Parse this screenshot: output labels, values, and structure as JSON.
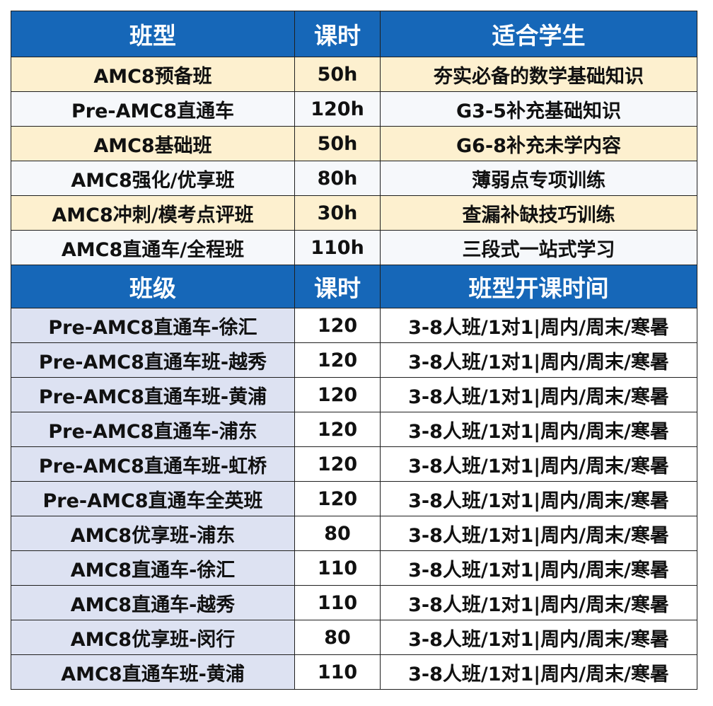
{
  "section1": {
    "headers": [
      "班型",
      "课时",
      "适合学生"
    ],
    "rows": [
      {
        "name": "AMC8预备班",
        "hours": "50h",
        "target": "夯实必备的数学基础知识"
      },
      {
        "name": "Pre-AMC8直通车",
        "hours": "120h",
        "target": "G3-5补充基础知识"
      },
      {
        "name": "AMC8基础班",
        "hours": "50h",
        "target": "G6-8补充未学内容"
      },
      {
        "name": "AMC8强化/优享班",
        "hours": "80h",
        "target": "薄弱点专项训练"
      },
      {
        "name": "AMC8冲刺/模考点评班",
        "hours": "30h",
        "target": "查漏补缺技巧训练"
      },
      {
        "name": "AMC8直通车/全程班",
        "hours": "110h",
        "target": "三段式一站式学习"
      }
    ]
  },
  "section2": {
    "headers": [
      "班级",
      "课时",
      "班型开课时间"
    ],
    "rows": [
      {
        "name": "Pre-AMC8直通车-徐汇",
        "hours": "120",
        "schedule": "3-8人班/1对1|周内/周末/寒暑"
      },
      {
        "name": "Pre-AMC8直通车班-越秀",
        "hours": "120",
        "schedule": "3-8人班/1对1|周内/周末/寒暑"
      },
      {
        "name": "Pre-AMC8直通车班-黄浦",
        "hours": "120",
        "schedule": "3-8人班/1对1|周内/周末/寒暑"
      },
      {
        "name": "Pre-AMC8直通车-浦东",
        "hours": "120",
        "schedule": "3-8人班/1对1|周内/周末/寒暑"
      },
      {
        "name": "Pre-AMC8直通车班-虹桥",
        "hours": "120",
        "schedule": "3-8人班/1对1|周内/周末/寒暑"
      },
      {
        "name": "Pre-AMC8直通车全英班",
        "hours": "120",
        "schedule": "3-8人班/1对1|周内/周末/寒暑"
      },
      {
        "name": "AMC8优享班-浦东",
        "hours": "80",
        "schedule": "3-8人班/1对1|周内/周末/寒暑"
      },
      {
        "name": "AMC8直通车-徐汇",
        "hours": "110",
        "schedule": "3-8人班/1对1|周内/周末/寒暑"
      },
      {
        "name": "AMC8直通车-越秀",
        "hours": "110",
        "schedule": "3-8人班/1对1|周内/周末/寒暑"
      },
      {
        "name": "AMC8优享班-闵行",
        "hours": "80",
        "schedule": "3-8人班/1对1|周内/周末/寒暑"
      },
      {
        "name": "AMC8直通车班-黄浦",
        "hours": "110",
        "schedule": "3-8人班/1对1|周内/周末/寒暑"
      }
    ]
  },
  "colors": {
    "header_bg": "#1667b8",
    "header_text": "#ffffff",
    "row_yellow": "#fdf0cf",
    "row_white": "#f6f8fb",
    "name_cell_lavender": "#dde2f2",
    "border": "#1f1f1f"
  }
}
